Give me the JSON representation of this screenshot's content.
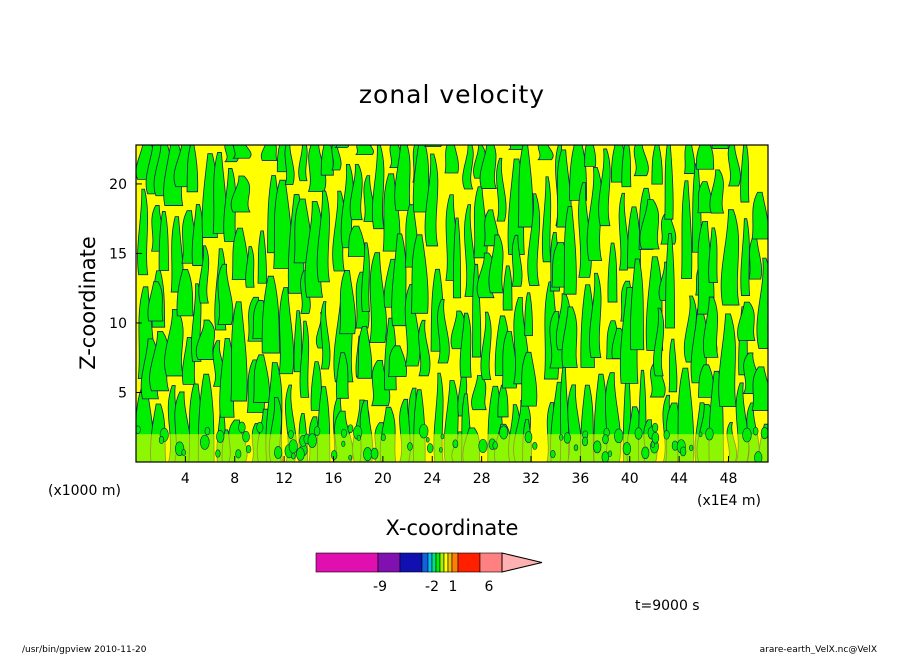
{
  "chart_data": {
    "type": "heatmap",
    "title": "zonal velocity",
    "xlabel": "X-coordinate",
    "ylabel": "Z-coordinate",
    "x_unit_left": "(x1000 m)",
    "x_unit_right": "(x1E4 m)",
    "xlim": [
      0,
      51.2
    ],
    "ylim": [
      0,
      22.8
    ],
    "x_ticks": [
      4,
      8,
      12,
      16,
      20,
      24,
      28,
      32,
      36,
      40,
      44,
      48
    ],
    "y_ticks": [
      5,
      10,
      15,
      20
    ],
    "field_colors": {
      "positive": "#ffff00",
      "negative": "#00ee00",
      "contour": "#1a1a66"
    },
    "colorbar": {
      "colors": [
        "#e010b0",
        "#8010b0",
        "#1010b0",
        "#1060e0",
        "#00c0f0",
        "#00e080",
        "#00ee00",
        "#a0f000",
        "#ffff00",
        "#f0c000",
        "#ff8000",
        "#ff2000",
        "#ff8080",
        "#ffb0b0"
      ],
      "labels": [
        "-9",
        "-2",
        "1",
        "6"
      ]
    },
    "time_label": "t=9000 s"
  },
  "footer": {
    "left": "/usr/bin/gpview   2010-11-20",
    "right": "arare-earth_VelX.nc@VelX"
  }
}
